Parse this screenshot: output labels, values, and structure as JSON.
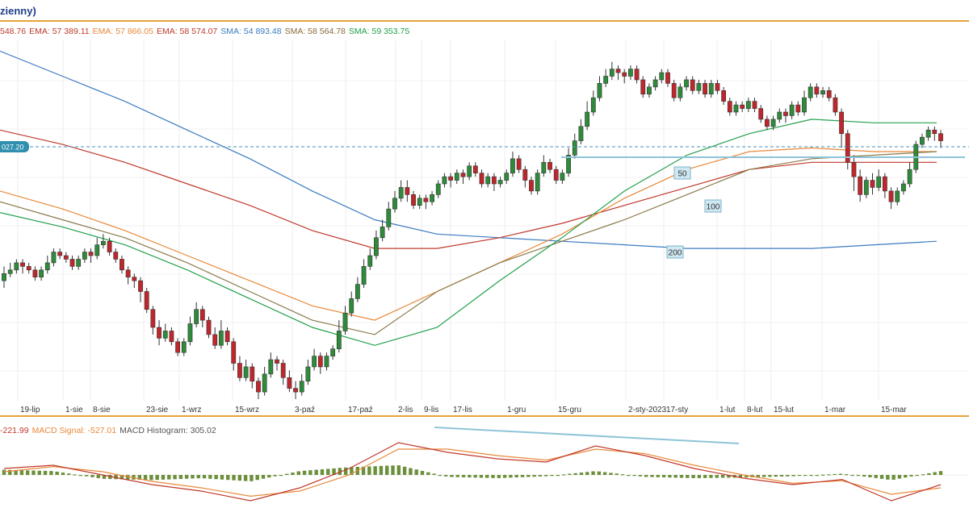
{
  "window_title": "zienny)",
  "legend": [
    {
      "text": "548.76",
      "color": "#c0392b"
    },
    {
      "text": "EMA: 57 389.11",
      "color": "#c0392b"
    },
    {
      "text": "EMA: 57 866.05",
      "color": "#e8893a"
    },
    {
      "text": "EMA: 58 574.07",
      "color": "#c0392b"
    },
    {
      "text": "SMA: 54 893.48",
      "color": "#3a7ac0"
    },
    {
      "text": "SMA: 58 564.78",
      "color": "#8a6a3a"
    },
    {
      "text": "SMA: 59 353.75",
      "color": "#22a04a"
    }
  ],
  "macd_legend": [
    {
      "text": "-221.99",
      "color": "#c0392b"
    },
    {
      "text": "MACD Signal: -527.01",
      "color": "#e8893a"
    },
    {
      "text": "MACD Histogram: 305.02",
      "color": "#555555"
    }
  ],
  "price_tag": "027.20",
  "colors": {
    "up": "#2e8b3a",
    "down": "#c0262b",
    "sma50": "#22a04a",
    "sma100": "#8a7a4a",
    "sma200": "#3a7ac0",
    "ema_orange": "#e8893a",
    "ema_red": "#c0392b",
    "trend": "#8ec4d8"
  },
  "chart_data": {
    "type": "candlestick",
    "x_ticks": [
      "19-lip",
      "1-sie",
      "8-sie",
      "23-sie",
      "1-wrz",
      "15-wrz",
      "3-paź",
      "17-paź",
      "2-lis",
      "9-lis",
      "17-lis",
      "1-gru",
      "15-gru",
      "2-sty-2023",
      "17-sty",
      "1-lut",
      "8-lut",
      "15-lut",
      "1-mar",
      "15-mar"
    ],
    "annotations": [
      "50",
      "100",
      "200"
    ],
    "candles": [
      [
        0.33,
        0.35,
        0.31,
        0.37
      ],
      [
        0.35,
        0.36,
        0.34,
        0.38
      ],
      [
        0.36,
        0.38,
        0.35,
        0.39
      ],
      [
        0.38,
        0.37,
        0.35,
        0.39
      ],
      [
        0.37,
        0.36,
        0.35,
        0.38
      ],
      [
        0.36,
        0.34,
        0.33,
        0.37
      ],
      [
        0.34,
        0.36,
        0.33,
        0.37
      ],
      [
        0.36,
        0.38,
        0.35,
        0.4
      ],
      [
        0.38,
        0.41,
        0.37,
        0.42
      ],
      [
        0.41,
        0.4,
        0.39,
        0.42
      ],
      [
        0.4,
        0.39,
        0.38,
        0.41
      ],
      [
        0.39,
        0.37,
        0.36,
        0.4
      ],
      [
        0.37,
        0.39,
        0.36,
        0.4
      ],
      [
        0.39,
        0.41,
        0.38,
        0.42
      ],
      [
        0.41,
        0.4,
        0.38,
        0.42
      ],
      [
        0.4,
        0.43,
        0.39,
        0.45
      ],
      [
        0.43,
        0.44,
        0.42,
        0.46
      ],
      [
        0.44,
        0.41,
        0.4,
        0.45
      ],
      [
        0.41,
        0.39,
        0.38,
        0.42
      ],
      [
        0.39,
        0.36,
        0.35,
        0.4
      ],
      [
        0.36,
        0.34,
        0.32,
        0.37
      ],
      [
        0.34,
        0.33,
        0.31,
        0.35
      ],
      [
        0.33,
        0.3,
        0.27,
        0.34
      ],
      [
        0.3,
        0.25,
        0.24,
        0.31
      ],
      [
        0.25,
        0.2,
        0.18,
        0.26
      ],
      [
        0.2,
        0.17,
        0.15,
        0.22
      ],
      [
        0.17,
        0.19,
        0.16,
        0.21
      ],
      [
        0.19,
        0.16,
        0.15,
        0.2
      ],
      [
        0.16,
        0.13,
        0.12,
        0.17
      ],
      [
        0.13,
        0.16,
        0.12,
        0.17
      ],
      [
        0.16,
        0.21,
        0.15,
        0.23
      ],
      [
        0.21,
        0.25,
        0.2,
        0.27
      ],
      [
        0.25,
        0.22,
        0.2,
        0.26
      ],
      [
        0.22,
        0.18,
        0.17,
        0.23
      ],
      [
        0.18,
        0.15,
        0.14,
        0.2
      ],
      [
        0.15,
        0.19,
        0.14,
        0.22
      ],
      [
        0.19,
        0.16,
        0.15,
        0.2
      ],
      [
        0.16,
        0.1,
        0.08,
        0.17
      ],
      [
        0.1,
        0.06,
        0.05,
        0.12
      ],
      [
        0.06,
        0.09,
        0.05,
        0.11
      ],
      [
        0.09,
        0.05,
        0.03,
        0.1
      ],
      [
        0.05,
        0.02,
        0.0,
        0.06
      ],
      [
        0.02,
        0.07,
        0.01,
        0.09
      ],
      [
        0.07,
        0.11,
        0.06,
        0.13
      ],
      [
        0.11,
        0.1,
        0.08,
        0.12
      ],
      [
        0.1,
        0.06,
        0.04,
        0.11
      ],
      [
        0.06,
        0.03,
        0.02,
        0.08
      ],
      [
        0.03,
        0.02,
        0.0,
        0.05
      ],
      [
        0.02,
        0.05,
        0.01,
        0.07
      ],
      [
        0.05,
        0.09,
        0.04,
        0.11
      ],
      [
        0.09,
        0.12,
        0.08,
        0.14
      ],
      [
        0.12,
        0.09,
        0.07,
        0.13
      ],
      [
        0.09,
        0.12,
        0.08,
        0.13
      ],
      [
        0.12,
        0.14,
        0.11,
        0.15
      ],
      [
        0.14,
        0.19,
        0.13,
        0.22
      ],
      [
        0.19,
        0.24,
        0.18,
        0.26
      ],
      [
        0.24,
        0.28,
        0.23,
        0.3
      ],
      [
        0.28,
        0.32,
        0.27,
        0.34
      ],
      [
        0.32,
        0.37,
        0.31,
        0.39
      ],
      [
        0.37,
        0.4,
        0.36,
        0.42
      ],
      [
        0.4,
        0.45,
        0.39,
        0.47
      ],
      [
        0.45,
        0.48,
        0.44,
        0.5
      ],
      [
        0.48,
        0.53,
        0.47,
        0.55
      ],
      [
        0.53,
        0.56,
        0.52,
        0.58
      ],
      [
        0.56,
        0.59,
        0.55,
        0.61
      ],
      [
        0.59,
        0.57,
        0.55,
        0.61
      ],
      [
        0.57,
        0.54,
        0.53,
        0.58
      ],
      [
        0.54,
        0.56,
        0.53,
        0.57
      ],
      [
        0.56,
        0.55,
        0.53,
        0.57
      ],
      [
        0.55,
        0.57,
        0.54,
        0.58
      ],
      [
        0.57,
        0.6,
        0.56,
        0.61
      ],
      [
        0.6,
        0.62,
        0.59,
        0.63
      ],
      [
        0.62,
        0.61,
        0.59,
        0.63
      ],
      [
        0.61,
        0.63,
        0.6,
        0.64
      ],
      [
        0.63,
        0.62,
        0.6,
        0.64
      ],
      [
        0.62,
        0.65,
        0.61,
        0.66
      ],
      [
        0.65,
        0.63,
        0.62,
        0.66
      ],
      [
        0.63,
        0.6,
        0.59,
        0.64
      ],
      [
        0.6,
        0.62,
        0.59,
        0.63
      ],
      [
        0.62,
        0.6,
        0.58,
        0.63
      ],
      [
        0.6,
        0.61,
        0.59,
        0.62
      ],
      [
        0.61,
        0.63,
        0.6,
        0.64
      ],
      [
        0.63,
        0.67,
        0.62,
        0.69
      ],
      [
        0.67,
        0.64,
        0.63,
        0.68
      ],
      [
        0.64,
        0.61,
        0.59,
        0.65
      ],
      [
        0.61,
        0.58,
        0.57,
        0.62
      ],
      [
        0.58,
        0.63,
        0.57,
        0.64
      ],
      [
        0.63,
        0.66,
        0.62,
        0.68
      ],
      [
        0.66,
        0.64,
        0.63,
        0.67
      ],
      [
        0.64,
        0.61,
        0.6,
        0.65
      ],
      [
        0.61,
        0.63,
        0.6,
        0.64
      ],
      [
        0.63,
        0.68,
        0.62,
        0.7
      ],
      [
        0.68,
        0.72,
        0.67,
        0.74
      ],
      [
        0.72,
        0.76,
        0.71,
        0.78
      ],
      [
        0.76,
        0.8,
        0.75,
        0.83
      ],
      [
        0.8,
        0.84,
        0.79,
        0.86
      ],
      [
        0.84,
        0.88,
        0.83,
        0.9
      ],
      [
        0.88,
        0.9,
        0.87,
        0.92
      ],
      [
        0.9,
        0.92,
        0.89,
        0.94
      ],
      [
        0.92,
        0.91,
        0.89,
        0.93
      ],
      [
        0.91,
        0.9,
        0.88,
        0.92
      ],
      [
        0.9,
        0.92,
        0.89,
        0.93
      ],
      [
        0.92,
        0.89,
        0.88,
        0.93
      ],
      [
        0.89,
        0.85,
        0.84,
        0.9
      ],
      [
        0.85,
        0.87,
        0.84,
        0.88
      ],
      [
        0.87,
        0.89,
        0.86,
        0.9
      ],
      [
        0.89,
        0.91,
        0.88,
        0.92
      ],
      [
        0.91,
        0.88,
        0.87,
        0.92
      ],
      [
        0.88,
        0.84,
        0.83,
        0.89
      ],
      [
        0.84,
        0.87,
        0.83,
        0.88
      ],
      [
        0.87,
        0.89,
        0.86,
        0.9
      ],
      [
        0.89,
        0.86,
        0.85,
        0.9
      ],
      [
        0.86,
        0.88,
        0.85,
        0.89
      ],
      [
        0.88,
        0.85,
        0.84,
        0.89
      ],
      [
        0.85,
        0.88,
        0.84,
        0.89
      ],
      [
        0.88,
        0.86,
        0.85,
        0.89
      ],
      [
        0.86,
        0.83,
        0.82,
        0.87
      ],
      [
        0.83,
        0.8,
        0.79,
        0.84
      ],
      [
        0.8,
        0.82,
        0.79,
        0.83
      ],
      [
        0.82,
        0.81,
        0.8,
        0.83
      ],
      [
        0.81,
        0.83,
        0.8,
        0.84
      ],
      [
        0.83,
        0.81,
        0.8,
        0.84
      ],
      [
        0.81,
        0.78,
        0.77,
        0.82
      ],
      [
        0.78,
        0.76,
        0.75,
        0.79
      ],
      [
        0.76,
        0.78,
        0.75,
        0.79
      ],
      [
        0.78,
        0.8,
        0.77,
        0.81
      ],
      [
        0.8,
        0.79,
        0.77,
        0.81
      ],
      [
        0.79,
        0.82,
        0.78,
        0.83
      ],
      [
        0.82,
        0.8,
        0.79,
        0.83
      ],
      [
        0.8,
        0.84,
        0.79,
        0.86
      ],
      [
        0.84,
        0.87,
        0.83,
        0.88
      ],
      [
        0.87,
        0.85,
        0.84,
        0.88
      ],
      [
        0.85,
        0.86,
        0.84,
        0.87
      ],
      [
        0.86,
        0.84,
        0.83,
        0.87
      ],
      [
        0.84,
        0.8,
        0.79,
        0.85
      ],
      [
        0.8,
        0.74,
        0.7,
        0.81
      ],
      [
        0.74,
        0.66,
        0.64,
        0.75
      ],
      [
        0.66,
        0.62,
        0.58,
        0.68
      ],
      [
        0.62,
        0.57,
        0.55,
        0.64
      ],
      [
        0.57,
        0.61,
        0.56,
        0.62
      ],
      [
        0.61,
        0.59,
        0.57,
        0.63
      ],
      [
        0.59,
        0.62,
        0.58,
        0.64
      ],
      [
        0.62,
        0.58,
        0.56,
        0.63
      ],
      [
        0.58,
        0.55,
        0.53,
        0.59
      ],
      [
        0.55,
        0.58,
        0.54,
        0.59
      ],
      [
        0.58,
        0.6,
        0.57,
        0.61
      ],
      [
        0.6,
        0.64,
        0.59,
        0.66
      ],
      [
        0.64,
        0.71,
        0.63,
        0.72
      ],
      [
        0.71,
        0.73,
        0.7,
        0.74
      ],
      [
        0.73,
        0.75,
        0.72,
        0.76
      ],
      [
        0.75,
        0.74,
        0.72,
        0.76
      ],
      [
        0.74,
        0.72,
        0.7,
        0.75
      ]
    ],
    "ma_lines": {
      "sma200": [
        0.97,
        0.9,
        0.83,
        0.75,
        0.67,
        0.58,
        0.5,
        0.46,
        0.45,
        0.44,
        0.43,
        0.42,
        0.42,
        0.42,
        0.43,
        0.44
      ],
      "sma100": [
        0.55,
        0.5,
        0.45,
        0.38,
        0.3,
        0.22,
        0.18,
        0.3,
        0.38,
        0.44,
        0.5,
        0.57,
        0.64,
        0.67,
        0.68,
        0.69
      ],
      "sma50": [
        0.52,
        0.48,
        0.43,
        0.36,
        0.28,
        0.2,
        0.15,
        0.2,
        0.33,
        0.45,
        0.58,
        0.68,
        0.74,
        0.78,
        0.77,
        0.77
      ],
      "ema_orange": [
        0.58,
        0.53,
        0.47,
        0.4,
        0.33,
        0.26,
        0.22,
        0.3,
        0.38,
        0.46,
        0.56,
        0.64,
        0.69,
        0.7,
        0.69,
        0.69
      ],
      "ema_red": [
        0.75,
        0.71,
        0.66,
        0.6,
        0.54,
        0.47,
        0.42,
        0.42,
        0.45,
        0.49,
        0.54,
        0.59,
        0.64,
        0.66,
        0.66,
        0.66
      ]
    },
    "macd": {
      "macd": [
        0.55,
        0.6,
        0.45,
        0.3,
        0.2,
        0.05,
        0.25,
        0.55,
        0.95,
        0.8,
        0.7,
        0.65,
        0.9,
        0.75,
        0.55,
        0.4,
        0.3,
        0.38,
        0.05,
        0.3
      ],
      "signal": [
        0.5,
        0.58,
        0.5,
        0.35,
        0.25,
        0.12,
        0.2,
        0.45,
        0.85,
        0.85,
        0.75,
        0.68,
        0.85,
        0.78,
        0.6,
        0.45,
        0.32,
        0.36,
        0.15,
        0.25
      ],
      "hist": [
        0.08,
        0.06,
        -0.06,
        -0.08,
        -0.05,
        -0.1,
        0.06,
        0.12,
        0.15,
        -0.03,
        -0.05,
        -0.02,
        0.06,
        -0.03,
        -0.05,
        -0.04,
        -0.02,
        0.02,
        -0.08,
        0.06
      ]
    }
  }
}
